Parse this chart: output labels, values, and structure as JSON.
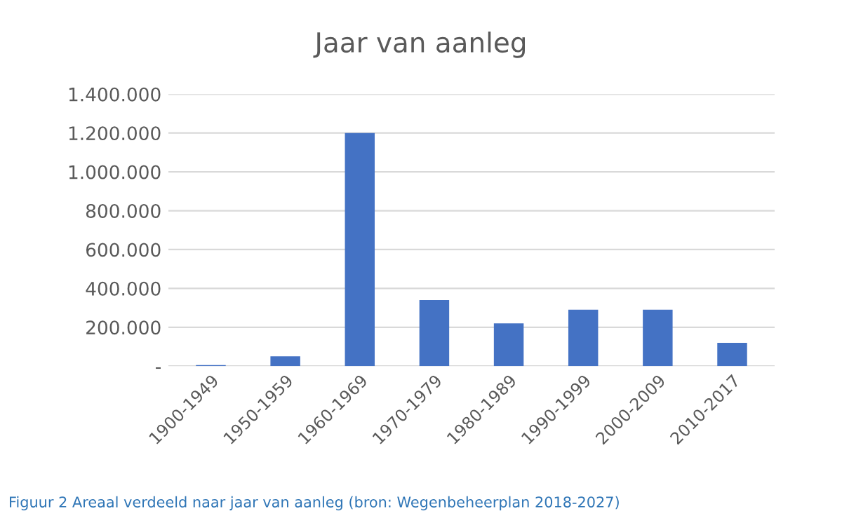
{
  "chart_data": {
    "type": "bar",
    "title": "Jaar van aanleg",
    "categories": [
      "1900-1949",
      "1950-1959",
      "1960-1969",
      "1970-1979",
      "1980-1989",
      "1990-1999",
      "2000-2009",
      "2010-2017"
    ],
    "values": [
      5000,
      50000,
      1200000,
      340000,
      220000,
      290000,
      290000,
      120000
    ],
    "color": "#4472c4",
    "ylim": [
      0,
      1400000
    ],
    "yticks": [
      {
        "value": 0,
        "label": "-"
      },
      {
        "value": 200000,
        "label": "200.000"
      },
      {
        "value": 400000,
        "label": "400.000"
      },
      {
        "value": 600000,
        "label": "600.000"
      },
      {
        "value": 800000,
        "label": "800.000"
      },
      {
        "value": 1000000,
        "label": "1.000.000"
      },
      {
        "value": 1200000,
        "label": "1.200.000"
      },
      {
        "value": 1400000,
        "label": "1.400.000"
      }
    ],
    "grid": "y",
    "annotations": [
      "Figuur 2 Areaal verdeeld naar jaar van aanleg (bron: Wegenbeheerplan 2018-2027)"
    ]
  }
}
